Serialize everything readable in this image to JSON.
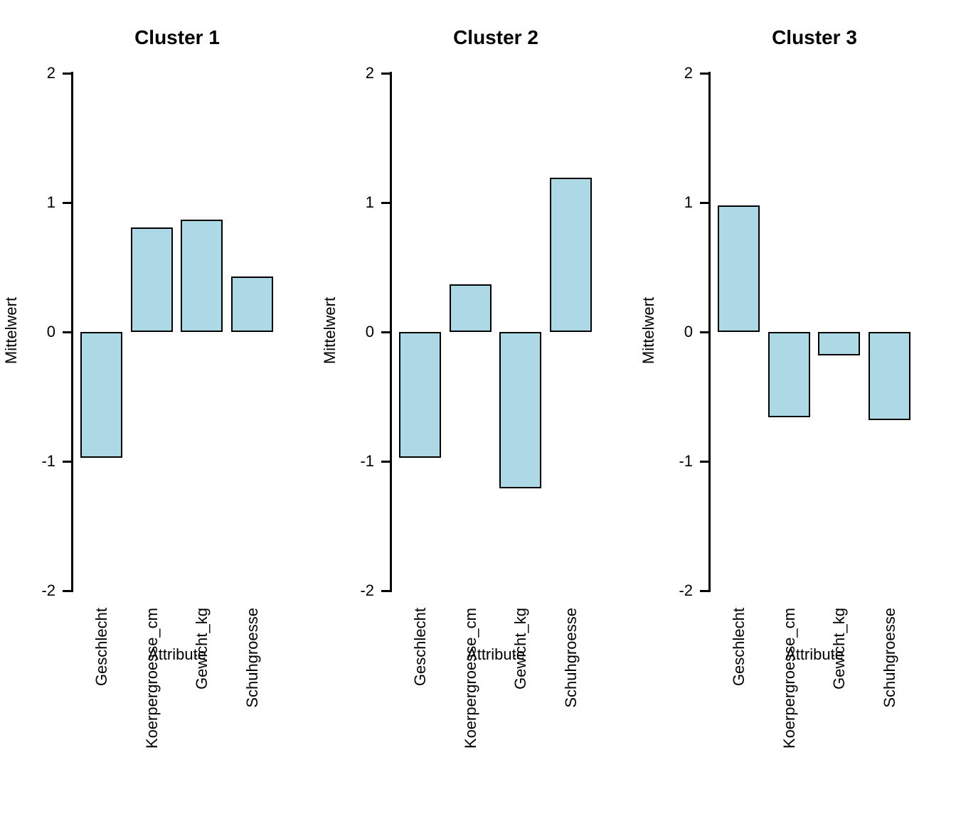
{
  "figure": {
    "background": "#FFFFFF",
    "bar_fill": "#ADD8E6",
    "bar_border": "#000000",
    "text_color": "#000000"
  },
  "y_axis": {
    "label": "Mittelwert",
    "ticks": [
      "2",
      "1",
      "0",
      "-1",
      "-2"
    ]
  },
  "x_axis": {
    "label": "Attribute",
    "categories": [
      "Geschlecht",
      "Koerpergroesse_cm",
      "Gewicht_kg",
      "Schuhgroesse"
    ]
  },
  "chart_data": [
    {
      "type": "bar",
      "title": "Cluster 1",
      "xlabel": "Attribute",
      "ylabel": "Mittelwert",
      "ylim": [
        -2,
        2
      ],
      "grid": false,
      "categories": [
        "Geschlecht",
        "Koerpergroesse_cm",
        "Gewicht_kg",
        "Schuhgroesse"
      ],
      "values": [
        -0.97,
        0.81,
        0.87,
        0.43
      ]
    },
    {
      "type": "bar",
      "title": "Cluster 2",
      "xlabel": "Attribute",
      "ylabel": "Mittelwert",
      "ylim": [
        -2,
        2
      ],
      "grid": false,
      "categories": [
        "Geschlecht",
        "Koerpergroesse_cm",
        "Gewicht_kg",
        "Schuhgroesse"
      ],
      "values": [
        -0.97,
        0.37,
        -1.21,
        1.19
      ]
    },
    {
      "type": "bar",
      "title": "Cluster 3",
      "xlabel": "Attribute",
      "ylabel": "Mittelwert",
      "ylim": [
        -2,
        2
      ],
      "grid": false,
      "categories": [
        "Geschlecht",
        "Koerpergroesse_cm",
        "Gewicht_kg",
        "Schuhgroesse"
      ],
      "values": [
        0.98,
        -0.66,
        -0.18,
        -0.68
      ]
    }
  ]
}
